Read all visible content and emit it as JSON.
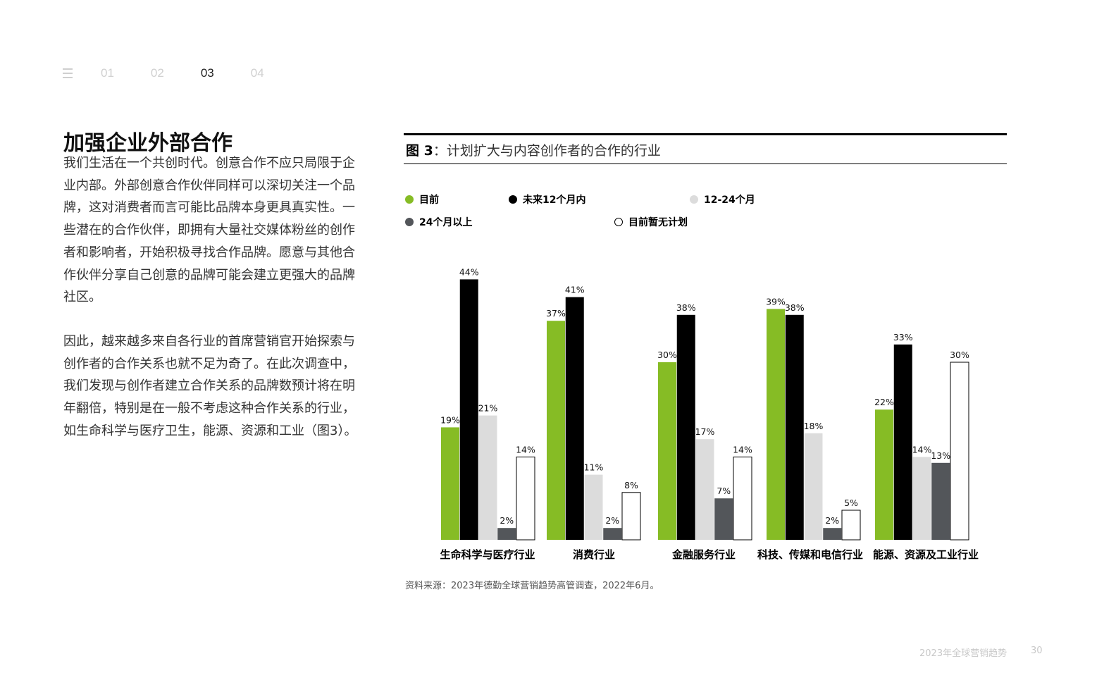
{
  "nav": {
    "items": [
      "01",
      "02",
      "03",
      "04"
    ],
    "active_index": 2
  },
  "heading": "加强企业外部合作",
  "paragraphs": [
    "我们生活在一个共创时代。创意合作不应只局限于企业内部。外部创意合作伙伴同样可以深切关注一个品牌，这对消费者而言可能比品牌本身更具真实性。一些潜在的合作伙伴，即拥有大量社交媒体粉丝的创作者和影响者，开始积极寻找合作品牌。愿意与其他合作伙伴分享自己创意的品牌可能会建立更强大的品牌社区。",
    "因此，越来越多来自各行业的首席营销官开始探索与创作者的合作关系也就不足为奇了。在此次调查中，我们发现与创作者建立合作关系的品牌数预计将在明年翻倍，特别是在一般不考虑这种合作关系的行业，如生命科学与医疗卫生，能源、资源和工业（图3）。"
  ],
  "figure": {
    "label": "图 3",
    "title": "：计划扩大与内容创作者的合作的行业"
  },
  "chart_data": {
    "type": "bar",
    "title": "图 3：计划扩大与内容创作者的合作的行业",
    "categories": [
      "生命科学与医疗行业",
      "消费行业",
      "金融服务行业",
      "科技、传媒和电信行业",
      "能源、资源及工业行业"
    ],
    "series": [
      {
        "name": "目前",
        "color": "#86bc25",
        "values": [
          19,
          37,
          30,
          39,
          22
        ]
      },
      {
        "name": "未来12个月内",
        "color": "#000000",
        "values": [
          44,
          41,
          38,
          38,
          33
        ]
      },
      {
        "name": "12-24个月",
        "color": "#dcdcdc",
        "values": [
          21,
          11,
          17,
          18,
          14
        ]
      },
      {
        "name": "24个月以上",
        "color": "#53565a",
        "values": [
          2,
          2,
          7,
          2,
          13
        ]
      },
      {
        "name": "目前暂无计划",
        "color": "#ffffff",
        "values": [
          14,
          8,
          14,
          5,
          30
        ]
      }
    ],
    "value_suffix": "%",
    "ylim": [
      0,
      44
    ],
    "grid": false,
    "legend_position": "top"
  },
  "source": "资料来源：2023年德勤全球营销趋势高管调查，2022年6月。",
  "footer": {
    "title": "2023年全球营销趋势",
    "page": "30"
  }
}
